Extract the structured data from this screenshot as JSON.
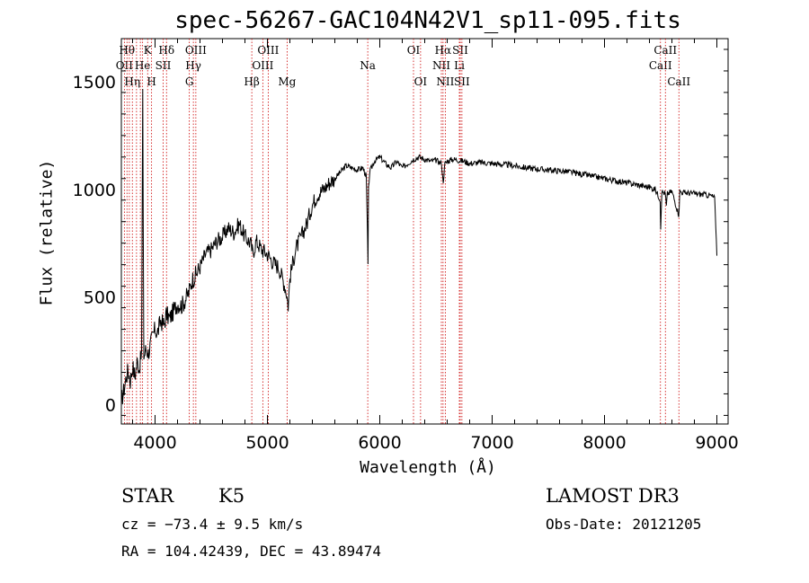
{
  "title": "spec-56267-GAC104N42V1_sp11-095.fits",
  "footer": {
    "class": "STAR",
    "subclass": "K5",
    "survey": "LAMOST DR3",
    "cz": "cz = −73.4 ± 9.5 km/s",
    "obs_date": "Obs-Date: 20121205",
    "radec": "RA = 104.42439, DEC =  43.89474"
  },
  "chart_data": {
    "type": "line",
    "title": "spec-56267-GAC104N42V1_sp11-095.fits",
    "xlabel": "Wavelength (Å)",
    "ylabel": "Flux (relative)",
    "xlim": [
      3700,
      9100
    ],
    "ylim": [
      -90,
      1700
    ],
    "xticks": [
      4000,
      5000,
      6000,
      7000,
      8000,
      9000
    ],
    "yticks": [
      0,
      500,
      1000,
      1500
    ],
    "line_color": "#000000",
    "marker_color": "#cc0000",
    "series": [
      {
        "x": [
          3700,
          3720,
          3740,
          3760,
          3780,
          3800,
          3820,
          3840,
          3860,
          3880,
          3890,
          3900,
          3920,
          3940,
          3960,
          3980,
          4000,
          4020,
          4050,
          4080,
          4100,
          4130,
          4160,
          4200,
          4240,
          4280,
          4300,
          4330,
          4360,
          4400,
          4450,
          4500,
          4550,
          4600,
          4650,
          4700,
          4750,
          4800,
          4850,
          4870,
          4880,
          4900,
          4950,
          5000,
          5050,
          5100,
          5150,
          5170,
          5185,
          5200,
          5250,
          5300,
          5350,
          5400,
          5450,
          5500,
          5550,
          5600,
          5650,
          5700,
          5750,
          5800,
          5850,
          5880,
          5890,
          5895,
          5900,
          5910,
          5950,
          6000,
          6050,
          6100,
          6150,
          6200,
          6250,
          6300,
          6350,
          6400,
          6450,
          6500,
          6550,
          6563,
          6580,
          6600,
          6650,
          6700,
          6750,
          6800,
          6900,
          7000,
          7100,
          7200,
          7300,
          7400,
          7500,
          7600,
          7700,
          7800,
          7900,
          8000,
          8100,
          8200,
          8300,
          8400,
          8450,
          8498,
          8500,
          8510,
          8542,
          8550,
          8560,
          8600,
          8662,
          8670,
          8700,
          8800,
          8900,
          8950,
          8980,
          9000
        ],
        "values": [
          20,
          60,
          120,
          160,
          110,
          180,
          130,
          200,
          170,
          240,
          1430,
          220,
          260,
          240,
          280,
          320,
          350,
          330,
          390,
          370,
          420,
          400,
          430,
          470,
          460,
          500,
          520,
          580,
          600,
          640,
          700,
          720,
          760,
          780,
          820,
          800,
          840,
          780,
          750,
          700,
          720,
          760,
          720,
          700,
          660,
          640,
          560,
          520,
          460,
          590,
          720,
          780,
          840,
          930,
          980,
          1000,
          1030,
          1050,
          1080,
          1110,
          1100,
          1090,
          1100,
          1060,
          800,
          640,
          1000,
          1080,
          1130,
          1150,
          1120,
          1100,
          1130,
          1100,
          1120,
          1140,
          1150,
          1140,
          1130,
          1135,
          1120,
          1030,
          1120,
          1130,
          1140,
          1135,
          1130,
          1120,
          1125,
          1120,
          1115,
          1110,
          1100,
          1095,
          1090,
          1085,
          1080,
          1070,
          1060,
          1050,
          1040,
          1030,
          1020,
          1010,
          1000,
          950,
          820,
          990,
          980,
          920,
          980,
          990,
          880,
          990,
          985,
          980,
          975,
          970,
          960,
          700
        ]
      }
    ],
    "lines": [
      {
        "wl": 3727,
        "label": "OII",
        "row": 1
      },
      {
        "wl": 3750,
        "label": "Hθ",
        "row": 0
      },
      {
        "wl": 3771,
        "label": "",
        "row": -1
      },
      {
        "wl": 3798,
        "label": "Hη",
        "row": 2
      },
      {
        "wl": 3835,
        "label": "",
        "row": -1
      },
      {
        "wl": 3869,
        "label": "",
        "row": -1
      },
      {
        "wl": 3889,
        "label": "He",
        "row": 1
      },
      {
        "wl": 3934,
        "label": "K",
        "row": 0
      },
      {
        "wl": 3969,
        "label": "H",
        "row": 2
      },
      {
        "wl": 4072,
        "label": "SII",
        "row": 1
      },
      {
        "wl": 4102,
        "label": "Hδ",
        "row": 0
      },
      {
        "wl": 4305,
        "label": "G",
        "row": 2
      },
      {
        "wl": 4341,
        "label": "Hγ",
        "row": 1
      },
      {
        "wl": 4363,
        "label": "OIII",
        "row": 0
      },
      {
        "wl": 4861,
        "label": "Hβ",
        "row": 2
      },
      {
        "wl": 4959,
        "label": "OIII",
        "row": 1
      },
      {
        "wl": 5007,
        "label": "OIII",
        "row": 0
      },
      {
        "wl": 5175,
        "label": "Mg",
        "row": 2
      },
      {
        "wl": 5893,
        "label": "Na",
        "row": 1
      },
      {
        "wl": 6300,
        "label": "OI",
        "row": 0
      },
      {
        "wl": 6363,
        "label": "OI",
        "row": 2
      },
      {
        "wl": 6548,
        "label": "NII",
        "row": 1
      },
      {
        "wl": 6563,
        "label": "Hα",
        "row": 0
      },
      {
        "wl": 6583,
        "label": "NII",
        "row": 2
      },
      {
        "wl": 6708,
        "label": "Li",
        "row": 1
      },
      {
        "wl": 6716,
        "label": "SII",
        "row": 0
      },
      {
        "wl": 6731,
        "label": "SII",
        "row": 2
      },
      {
        "wl": 8498,
        "label": "CaII",
        "row": 1
      },
      {
        "wl": 8542,
        "label": "CaII",
        "row": 0
      },
      {
        "wl": 8662,
        "label": "CaII",
        "row": 2
      }
    ]
  }
}
